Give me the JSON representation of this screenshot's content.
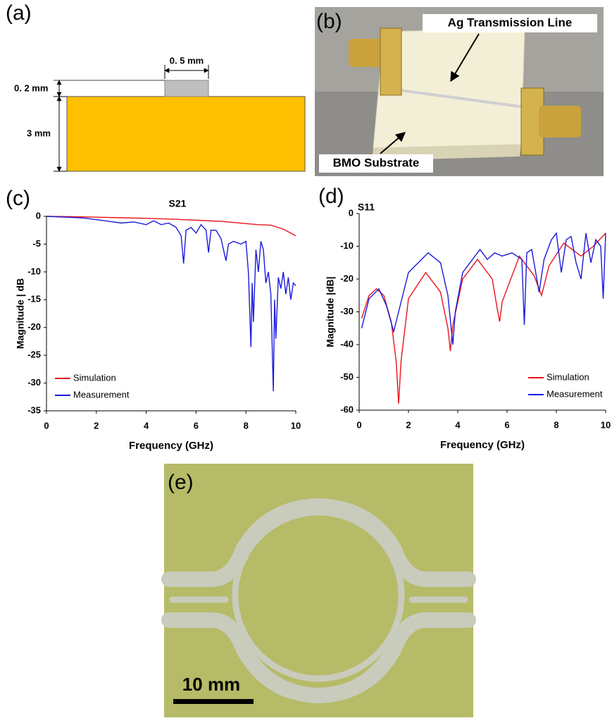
{
  "panels": {
    "a": {
      "label": "(a)",
      "width_label": "0. 5 mm",
      "thin_label": "0. 2 mm",
      "thick_label": "3 mm"
    },
    "b": {
      "label": "(b)",
      "line_label": "Ag Transmission Line",
      "substrate_label": "BMO Substrate"
    },
    "e": {
      "label": "(e)",
      "scale_label": "10 mm"
    }
  },
  "chart_data": [
    {
      "type": "line",
      "panel_label": "(c)",
      "title": "S21",
      "x_label": "Frequency (GHz)",
      "y_label": "Magnitude | dB",
      "xlim": [
        0,
        10
      ],
      "xticks": [
        0,
        2,
        4,
        6,
        8,
        10
      ],
      "ylim": [
        -35,
        0
      ],
      "yticks": [
        0,
        -5,
        -10,
        -15,
        -20,
        -25,
        -30,
        -35
      ],
      "legend": "lower left",
      "series": [
        {
          "name": "Simulation",
          "color": "#e8141c",
          "x": [
            0,
            1,
            2,
            3,
            4,
            5,
            6,
            7,
            7.5,
            8,
            8.5,
            9,
            9.5,
            10
          ],
          "values": [
            0,
            -0.05,
            -0.15,
            -0.25,
            -0.35,
            -0.5,
            -0.7,
            -0.9,
            -1.1,
            -1.3,
            -1.5,
            -1.6,
            -2.3,
            -3.5
          ]
        },
        {
          "name": "Measurement",
          "color": "#1a1adc",
          "x": [
            0,
            0.5,
            1,
            1.5,
            2,
            2.5,
            3,
            3.5,
            4,
            4.3,
            4.6,
            4.9,
            5.2,
            5.4,
            5.5,
            5.6,
            5.8,
            6,
            6.2,
            6.4,
            6.5,
            6.6,
            6.8,
            7,
            7.2,
            7.3,
            7.5,
            7.8,
            8,
            8.1,
            8.2,
            8.25,
            8.3,
            8.4,
            8.5,
            8.6,
            8.7,
            8.8,
            8.9,
            9.0,
            9.1,
            9.15,
            9.2,
            9.3,
            9.4,
            9.5,
            9.6,
            9.7,
            9.8,
            9.9,
            10
          ],
          "values": [
            0,
            -0.1,
            -0.2,
            -0.3,
            -0.6,
            -0.9,
            -1.2,
            -1.0,
            -1.5,
            -0.8,
            -1.5,
            -1.2,
            -2,
            -3.5,
            -8.5,
            -2.5,
            -2,
            -3,
            -1.5,
            -2.5,
            -6.5,
            -2.5,
            -2.5,
            -4,
            -8,
            -5,
            -4.5,
            -5,
            -4.5,
            -10,
            -23.5,
            -12,
            -19,
            -6,
            -10,
            -4.5,
            -6,
            -12,
            -10,
            -14,
            -31.5,
            -15,
            -22,
            -11,
            -13,
            -10,
            -14,
            -11,
            -15,
            -12,
            -12.5
          ]
        }
      ]
    },
    {
      "type": "line",
      "panel_label": "(d)",
      "title": "S11",
      "x_label": "Frequency (GHz)",
      "y_label": "Magnitude |dB|",
      "xlim": [
        0,
        10
      ],
      "xticks": [
        0,
        2,
        4,
        6,
        8,
        10
      ],
      "ylim": [
        -60,
        0
      ],
      "yticks": [
        0,
        -10,
        -20,
        -30,
        -40,
        -50,
        -60
      ],
      "legend": "lower right",
      "series": [
        {
          "name": "Simulation",
          "color": "#e8141c",
          "x": [
            0.1,
            0.4,
            0.7,
            1.0,
            1.3,
            1.5,
            1.6,
            1.7,
            2.0,
            2.7,
            3.3,
            3.6,
            3.7,
            3.8,
            4.2,
            4.8,
            5.4,
            5.6,
            5.7,
            5.8,
            6.5,
            7.1,
            7.4,
            7.7,
            8.3,
            9.0,
            9.5,
            10
          ],
          "values": [
            -32,
            -25,
            -23,
            -25,
            -33,
            -45,
            -58,
            -45,
            -26,
            -18,
            -24,
            -35,
            -42,
            -34,
            -20,
            -14,
            -20,
            -29,
            -33,
            -27,
            -13,
            -19,
            -25,
            -16,
            -9,
            -13,
            -10,
            -6
          ]
        },
        {
          "name": "Measurement",
          "color": "#1a1adc",
          "x": [
            0.1,
            0.4,
            0.8,
            1.1,
            1.4,
            1.6,
            2.0,
            2.8,
            3.3,
            3.6,
            3.8,
            3.9,
            4.2,
            4.9,
            5.2,
            5.5,
            5.8,
            6.2,
            6.6,
            6.7,
            6.8,
            7.0,
            7.3,
            7.5,
            7.8,
            8.0,
            8.2,
            8.4,
            8.6,
            8.8,
            9.0,
            9.2,
            9.4,
            9.6,
            9.8,
            9.9,
            10
          ],
          "values": [
            -35,
            -26,
            -23,
            -28,
            -36,
            -30,
            -18,
            -12,
            -15,
            -25,
            -40,
            -30,
            -18,
            -11,
            -14,
            -12,
            -13,
            -12,
            -14,
            -34,
            -12,
            -11,
            -24,
            -14,
            -8,
            -6,
            -18,
            -8,
            -7,
            -15,
            -20,
            -6,
            -15,
            -8,
            -10,
            -26,
            -6
          ]
        }
      ]
    }
  ]
}
